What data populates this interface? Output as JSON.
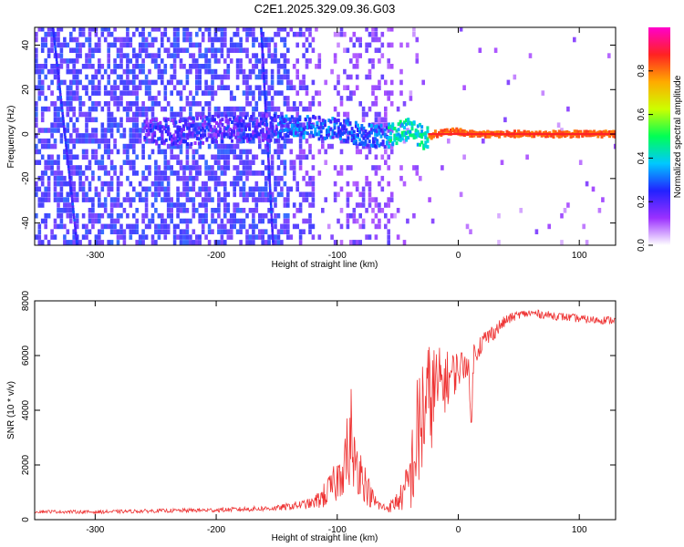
{
  "title": "C2E1.2025.329.09.36.G03",
  "colors": {
    "snr_line": "#ee3333",
    "frame": "#000000",
    "background": "#ffffff"
  },
  "chart_data": [
    {
      "type": "heatmap",
      "xlabel": "Height of straight line (km)",
      "ylabel": "Frequency (Hz)",
      "xlim": [
        -350,
        130
      ],
      "ylim": [
        -50,
        48
      ],
      "xticks": [
        -300,
        -200,
        -100,
        0,
        100
      ],
      "xtick_labels": [
        "-300",
        "-200",
        "-100",
        "0",
        "100"
      ],
      "yticks": [
        -40,
        -20,
        0,
        20,
        40
      ],
      "ytick_labels": [
        "-40",
        "-20",
        "0",
        "20",
        "40"
      ],
      "ridge": {
        "x": [
          -350,
          -250,
          -200,
          -150,
          -120,
          -100,
          -80,
          -60,
          -40,
          -30,
          -20,
          -10,
          0,
          10,
          40,
          130
        ],
        "frequency": [
          0,
          1,
          2,
          3,
          3,
          2,
          0,
          -1,
          3,
          -2,
          0,
          1,
          1,
          0,
          0,
          0
        ]
      },
      "streaks": [
        {
          "x_top": -335,
          "x_bottom": -315
        },
        {
          "x_top": -163,
          "x_bottom": -153
        }
      ],
      "colorbar": {
        "label": "Normalized spectral amplitude",
        "range": [
          0,
          1
        ],
        "ticks": [
          0.0,
          0.2,
          0.4,
          0.6,
          0.8
        ],
        "tick_labels": [
          "0.0",
          "0.2",
          "0.4",
          "0.6",
          "0.8"
        ],
        "colormap": [
          "#ffffff",
          "#9b30ff",
          "#2222ff",
          "#00c8ff",
          "#00ff55",
          "#ccff00",
          "#ffaa00",
          "#ff2222",
          "#ff00cc"
        ]
      }
    },
    {
      "type": "line",
      "xlabel": "Height of straight line (km)",
      "ylabel": "SNR (10 * v/v)",
      "xlim": [
        -350,
        130
      ],
      "ylim": [
        0,
        8000
      ],
      "xticks": [
        -300,
        -200,
        -100,
        0,
        100
      ],
      "xtick_labels": [
        "-300",
        "-200",
        "-100",
        "0",
        "100"
      ],
      "yticks": [
        0,
        2000,
        4000,
        6000,
        8000
      ],
      "ytick_labels": [
        "0",
        "2000",
        "4000",
        "6000",
        "8000"
      ],
      "series": [
        {
          "name": "SNR",
          "x": [
            -350,
            -300,
            -250,
            -200,
            -150,
            -120,
            -110,
            -100,
            -95,
            -90,
            -85,
            -80,
            -75,
            -70,
            -65,
            -60,
            -55,
            -50,
            -45,
            -40,
            -35,
            -30,
            -25,
            -20,
            -15,
            -10,
            -5,
            0,
            5,
            10,
            15,
            20,
            30,
            40,
            50,
            60,
            70,
            80,
            90,
            100,
            110,
            120,
            130
          ],
          "y": [
            300,
            280,
            320,
            350,
            420,
            600,
            900,
            1400,
            2200,
            2600,
            2200,
            1700,
            1100,
            700,
            500,
            420,
            500,
            700,
            900,
            1500,
            2600,
            3800,
            4300,
            4700,
            4900,
            5100,
            5300,
            5500,
            5700,
            5900,
            6200,
            6500,
            6900,
            7300,
            7500,
            7550,
            7500,
            7450,
            7400,
            7350,
            7300,
            7300,
            7300
          ],
          "noise": [
            60,
            60,
            70,
            80,
            100,
            200,
            500,
            800,
            1300,
            1400,
            1200,
            900,
            600,
            350,
            200,
            150,
            250,
            400,
            600,
            1200,
            2400,
            2600,
            2200,
            1800,
            1400,
            1100,
            900,
            700,
            600,
            500,
            450,
            400,
            300,
            200,
            150,
            150,
            150,
            150,
            150,
            150,
            150,
            150,
            150
          ]
        }
      ]
    }
  ]
}
